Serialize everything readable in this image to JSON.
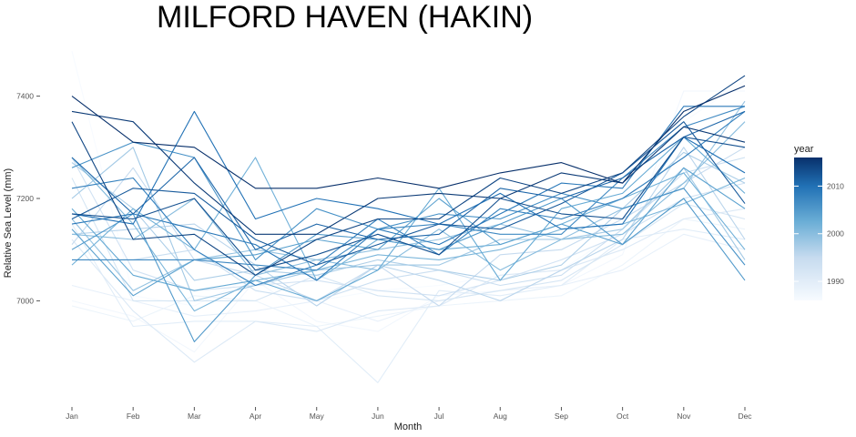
{
  "chart_data": {
    "type": "line",
    "title": "MILFORD HAVEN (HAKIN)",
    "xlabel": "Month",
    "ylabel": "Relative Sea Level (mm)",
    "categories": [
      "Jan",
      "Feb",
      "Mar",
      "Apr",
      "May",
      "Jun",
      "Jul",
      "Aug",
      "Sep",
      "Oct",
      "Nov",
      "Dec"
    ],
    "y_ticks": [
      7000,
      7200,
      7400
    ],
    "ylim": [
      6805,
      7490
    ],
    "grid": false,
    "legend": {
      "title": "year",
      "placement": "right",
      "type": "colorbar",
      "range": [
        1986,
        2016
      ],
      "ticks": [
        1990,
        2000,
        2010
      ],
      "low_color": "#f7fbff",
      "high_color": "#08306b"
    },
    "series": [
      {
        "name": "1986",
        "values": [
          7488,
          7010,
          6990,
          7050,
          7000,
          7020,
          7030,
          7050,
          7060,
          7140,
          7350,
          7430
        ]
      },
      {
        "name": "1987",
        "values": [
          7000,
          6970,
          6900,
          7040,
          6960,
          6940,
          7010,
          7020,
          7030,
          7090,
          7410,
          7410
        ]
      },
      {
        "name": "1988",
        "values": [
          6990,
          6960,
          7010,
          7000,
          6950,
          6970,
          6990,
          7000,
          7010,
          7070,
          7160,
          7140
        ]
      },
      {
        "name": "1989",
        "values": [
          7030,
          7000,
          6970,
          6980,
          7000,
          6960,
          7000,
          7020,
          7030,
          7060,
          7130,
          7100
        ]
      },
      {
        "name": "1990",
        "values": [
          7150,
          6950,
          6960,
          6960,
          6950,
          6840,
          7020,
          7010,
          7030,
          7120,
          7140,
          7120
        ]
      },
      {
        "name": "1991",
        "values": [
          7120,
          6980,
          6880,
          6960,
          6940,
          6980,
          6990,
          7050,
          7060,
          7100,
          7160,
          7180
        ]
      },
      {
        "name": "1992",
        "values": [
          7240,
          7000,
          7000,
          7000,
          7050,
          7010,
          7000,
          7020,
          7040,
          7110,
          7190,
          7160
        ]
      },
      {
        "name": "1993",
        "values": [
          7280,
          7060,
          7020,
          7030,
          7040,
          7020,
          7010,
          7040,
          7080,
          7130,
          7200,
          7230
        ]
      },
      {
        "name": "1994",
        "values": [
          7080,
          7080,
          7100,
          7020,
          7000,
          7040,
          7060,
          7030,
          7050,
          7140,
          7250,
          7280
        ]
      },
      {
        "name": "1995",
        "values": [
          7110,
          7260,
          7080,
          7050,
          7000,
          7070,
          6990,
          7090,
          7100,
          7160,
          7230,
          7300
        ]
      },
      {
        "name": "1996",
        "values": [
          7130,
          7140,
          7150,
          7070,
          6990,
          7070,
          7040,
          7000,
          7060,
          7120,
          7300,
          7120
        ]
      },
      {
        "name": "1997",
        "values": [
          7270,
          7180,
          7040,
          7060,
          7050,
          7080,
          7060,
          7040,
          7070,
          7180,
          7290,
          7230
        ]
      },
      {
        "name": "1998",
        "values": [
          7200,
          7300,
          7000,
          7030,
          7060,
          7070,
          7070,
          7120,
          7120,
          7140,
          7260,
          7080
        ]
      },
      {
        "name": "1999",
        "values": [
          7160,
          7020,
          7080,
          7100,
          7080,
          7100,
          7120,
          7150,
          7120,
          7180,
          7220,
          7390
        ]
      },
      {
        "name": "2000",
        "values": [
          7130,
          7120,
          7200,
          7050,
          7080,
          7060,
          7140,
          7060,
          7120,
          7130,
          7230,
          7350
        ]
      },
      {
        "name": "2001",
        "values": [
          7280,
          7150,
          6980,
          7040,
          7060,
          7090,
          7080,
          7100,
          7140,
          7150,
          7190,
          7240
        ]
      },
      {
        "name": "2002",
        "values": [
          7070,
          7180,
          7100,
          7280,
          7040,
          7120,
          7100,
          7110,
          7150,
          7200,
          7250,
          7100
        ]
      },
      {
        "name": "2003",
        "values": [
          7180,
          7050,
          7020,
          7040,
          7000,
          7060,
          7220,
          7040,
          7180,
          7210,
          7320,
          7210
        ]
      },
      {
        "name": "2004",
        "values": [
          7140,
          7010,
          7080,
          7090,
          7120,
          7100,
          7200,
          7110,
          7150,
          7110,
          7260,
          7180
        ]
      },
      {
        "name": "2005",
        "values": [
          7100,
          7170,
          6920,
          7050,
          7130,
          7120,
          7100,
          7150,
          7200,
          7110,
          7200,
          7040
        ]
      },
      {
        "name": "2006",
        "values": [
          7260,
          7310,
          7280,
          7080,
          7180,
          7140,
          7170,
          7160,
          7210,
          7180,
          7220,
          7070
        ]
      },
      {
        "name": "2007",
        "values": [
          7080,
          7080,
          7080,
          7070,
          7060,
          7140,
          7150,
          7130,
          7130,
          7240,
          7340,
          7380
        ]
      },
      {
        "name": "2008",
        "values": [
          7220,
          7240,
          7100,
          7030,
          7070,
          7160,
          7090,
          7180,
          7160,
          7200,
          7280,
          7370
        ]
      },
      {
        "name": "2009",
        "values": [
          7150,
          7170,
          7140,
          7110,
          7040,
          7140,
          7110,
          7170,
          7230,
          7220,
          7380,
          7380
        ]
      },
      {
        "name": "2010",
        "values": [
          7170,
          7150,
          7370,
          7160,
          7200,
          7180,
          7150,
          7210,
          7140,
          7150,
          7320,
          7250
        ]
      },
      {
        "name": "2011",
        "values": [
          7280,
          7170,
          7280,
          7100,
          7150,
          7120,
          7130,
          7220,
          7200,
          7240,
          7320,
          7370
        ]
      },
      {
        "name": "2012",
        "values": [
          7160,
          7220,
          7210,
          7120,
          7070,
          7110,
          7150,
          7140,
          7190,
          7250,
          7350,
          7190
        ]
      },
      {
        "name": "2013",
        "values": [
          7170,
          7160,
          7200,
          7060,
          7090,
          7130,
          7090,
          7200,
          7170,
          7160,
          7320,
          7300
        ]
      },
      {
        "name": "2014",
        "values": [
          7350,
          7120,
          7130,
          7050,
          7120,
          7160,
          7160,
          7240,
          7210,
          7250,
          7360,
          7440
        ]
      },
      {
        "name": "2015",
        "values": [
          7370,
          7350,
          7230,
          7130,
          7130,
          7200,
          7210,
          7200,
          7250,
          7230,
          7340,
          7310
        ]
      },
      {
        "name": "2016",
        "values": [
          7400,
          7310,
          7300,
          7220,
          7220,
          7240,
          7220,
          7250,
          7270,
          7230,
          7370,
          7420
        ]
      }
    ]
  }
}
